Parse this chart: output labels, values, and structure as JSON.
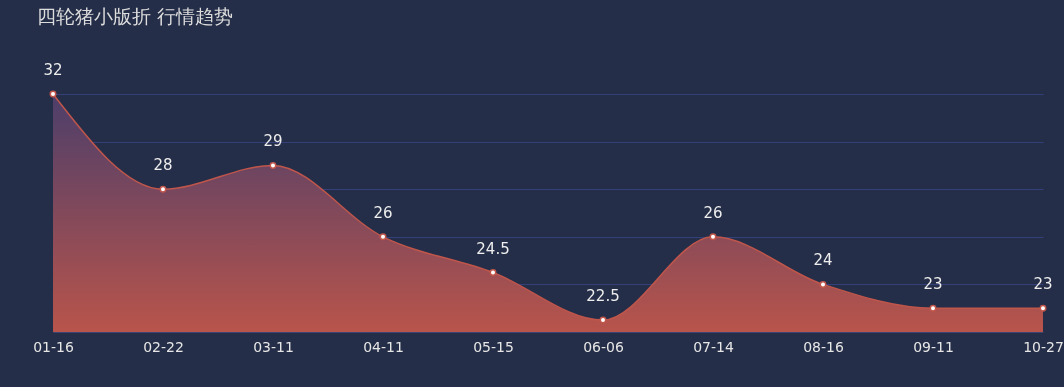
{
  "chart_data": {
    "type": "area",
    "title": "四轮猪小版折 行情趋势",
    "categories": [
      "01-16",
      "02-22",
      "03-11",
      "04-11",
      "05-15",
      "06-06",
      "07-14",
      "08-16",
      "09-11",
      "10-27"
    ],
    "series": [
      {
        "color": "#c0564b",
        "values": [
          32,
          28,
          29,
          26,
          24.5,
          22.5,
          26,
          24,
          23,
          23
        ]
      }
    ],
    "ylim": [
      22,
      32
    ],
    "yticks": [
      {
        "value": 24,
        "label": null
      },
      {
        "value": 26,
        "label": null
      },
      {
        "value": 28,
        "label": null
      },
      {
        "value": 30,
        "label": null
      },
      {
        "value": 32,
        "label": null
      }
    ],
    "grid": "y",
    "tick_labels": "x",
    "marker": "circle",
    "line_style": "solid",
    "data_labels": true
  }
}
